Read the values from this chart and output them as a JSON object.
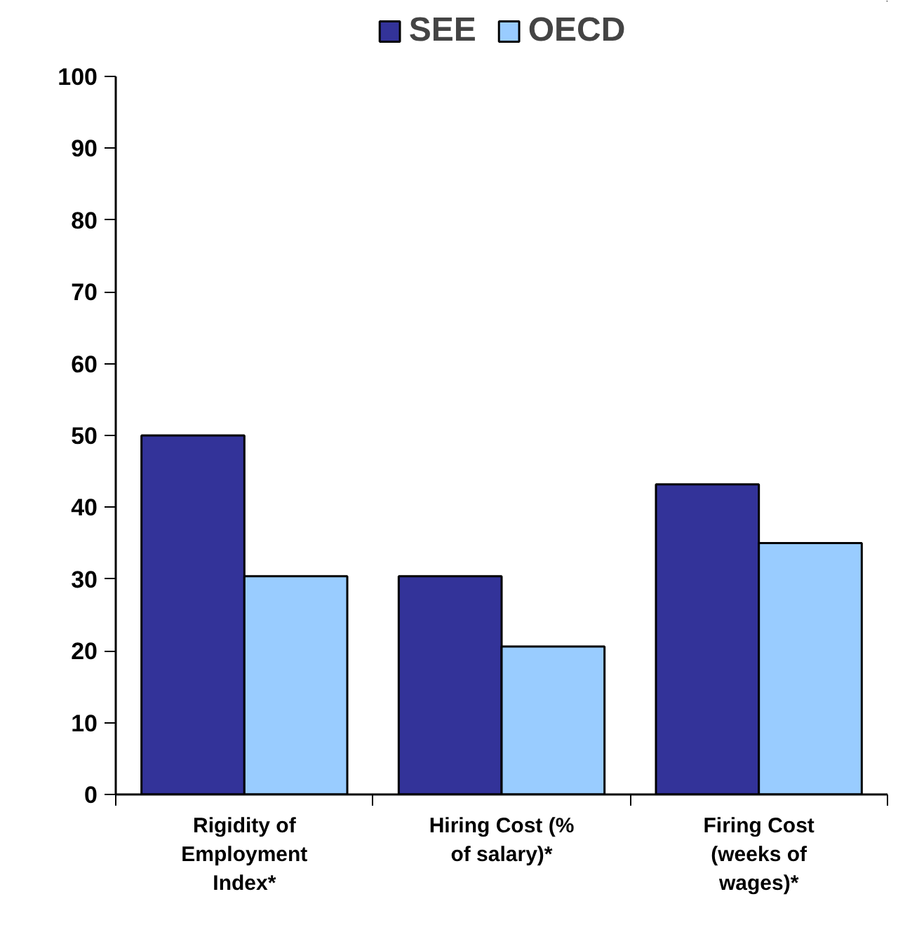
{
  "chart_data": {
    "type": "bar",
    "categories": [
      "Rigidity of\nEmployment\nIndex*",
      "Hiring Cost (%\nof salary)*",
      "Firing Cost\n(weeks of\nwages)*"
    ],
    "series": [
      {
        "name": "SEE",
        "color": "#333399",
        "values": [
          50,
          30.4,
          43.2
        ]
      },
      {
        "name": "OECD",
        "color": "#99ccff",
        "values": [
          30.4,
          20.6,
          35
        ]
      }
    ],
    "ylim": [
      0,
      100
    ],
    "yticks": [
      0,
      10,
      20,
      30,
      40,
      50,
      60,
      70,
      80,
      90,
      100
    ],
    "grid": false,
    "legend": "top"
  }
}
